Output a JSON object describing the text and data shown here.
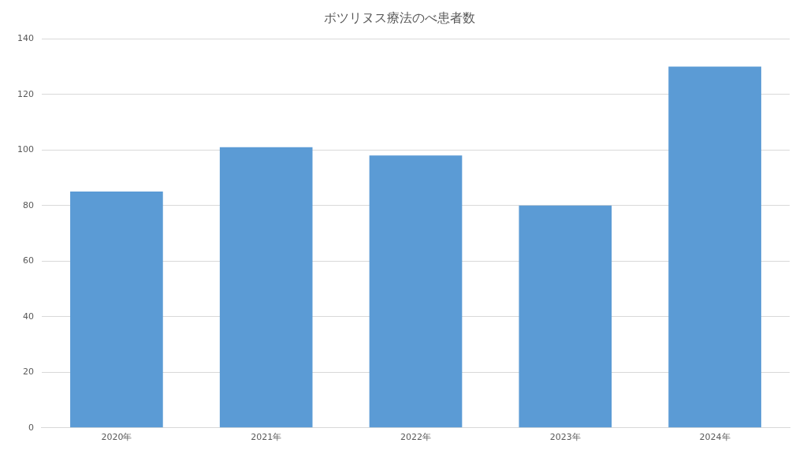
{
  "chart_data": {
    "type": "bar",
    "title": "ボツリヌス療法のべ患者数",
    "categories": [
      "2020年",
      "2021年",
      "2022年",
      "2023年",
      "2024年"
    ],
    "values": [
      85,
      101,
      98,
      80,
      130
    ],
    "color": "#5b9bd5",
    "ylim": [
      0,
      140
    ],
    "yticks": [
      0,
      20,
      40,
      60,
      80,
      100,
      120,
      140
    ],
    "grid": "y",
    "legend": false
  }
}
